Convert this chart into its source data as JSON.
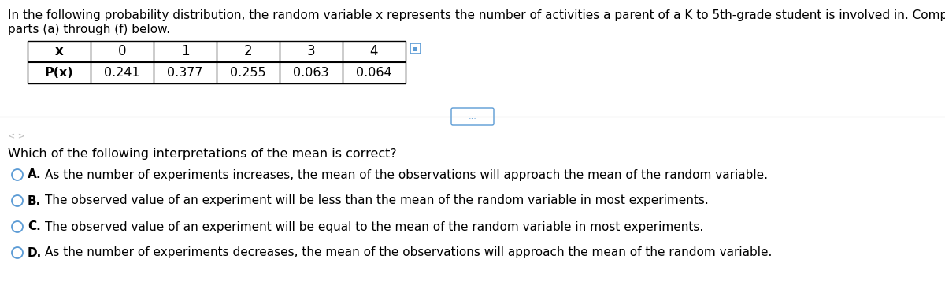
{
  "intro_line1": "In the following probability distribution, the random variable x represents the number of activities a parent of a K to 5th-grade student is involved in. Complete",
  "intro_line2": "parts (a) through (f) below.",
  "table_headers": [
    "x",
    "0",
    "1",
    "2",
    "3",
    "4"
  ],
  "table_row_label": "P(x)",
  "table_values": [
    "0.241",
    "0.377",
    "0.255",
    "0.063",
    "0.064"
  ],
  "question": "Which of the following interpretations of the mean is correct?",
  "options": [
    {
      "label": "A.",
      "text": "As the number of experiments increases, the mean of the observations will approach the mean of the random variable."
    },
    {
      "label": "B.",
      "text": "The observed value of an experiment will be less than the mean of the random variable in most experiments."
    },
    {
      "label": "C.",
      "text": "The observed value of an experiment will be equal to the mean of the random variable in most experiments."
    },
    {
      "label": "D.",
      "text": "As the number of experiments decreases, the mean of the observations will approach the mean of the random variable."
    }
  ],
  "bg_color": "#ffffff",
  "text_color": "#000000",
  "table_line_color": "#000000",
  "divider_color": "#aaaaaa",
  "circle_color": "#5b9bd5",
  "label_color": "#1155cc",
  "font_size_intro": 11.0,
  "font_size_table_header": 12,
  "font_size_table_data": 11.5,
  "font_size_question": 11.5,
  "font_size_options": 11.0
}
